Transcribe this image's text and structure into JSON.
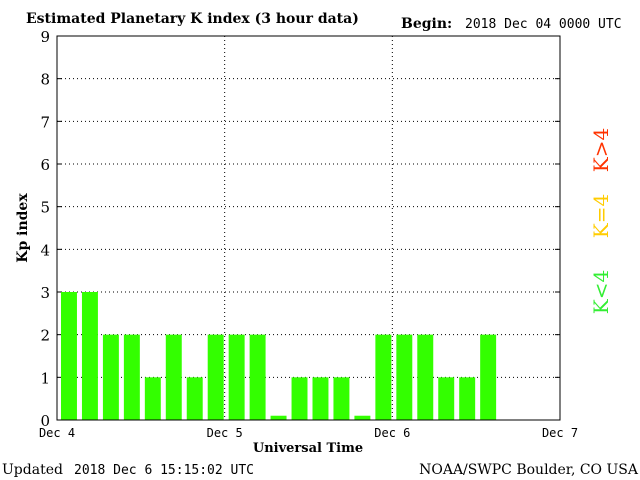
{
  "header": {
    "title": "Estimated Planetary K index (3 hour data)",
    "begin_label": "Begin:",
    "begin_value": "2018 Dec 04 0000 UTC"
  },
  "footer": {
    "updated_label": "Updated",
    "updated_value": "2018 Dec  6 15:15:02 UTC",
    "source": "NOAA/SWPC Boulder, CO USA"
  },
  "legend": {
    "items": [
      {
        "label": "K>4",
        "color": "#ff3300"
      },
      {
        "label": "K=4",
        "color": "#ffcc00"
      },
      {
        "label": "K<4",
        "color": "#33ee33"
      }
    ]
  },
  "chart_data": {
    "type": "bar",
    "title": "Estimated Planetary K index (3 hour data)",
    "xlabel": "Universal Time",
    "ylabel": "Kp index",
    "ylim": [
      0,
      9
    ],
    "yticks": [
      "0",
      "1",
      "2",
      "3",
      "4",
      "5",
      "6",
      "7",
      "8",
      "9"
    ],
    "xticks": [
      "Dec 4",
      "Dec 5",
      "Dec 6",
      "Dec 7"
    ],
    "grid": true,
    "bar_color": "#33ff00",
    "values": [
      3,
      3,
      2,
      2,
      1,
      2,
      1,
      2,
      2,
      2,
      0.1,
      1,
      1,
      1,
      0.1,
      2,
      2,
      2,
      1,
      1,
      2
    ]
  }
}
